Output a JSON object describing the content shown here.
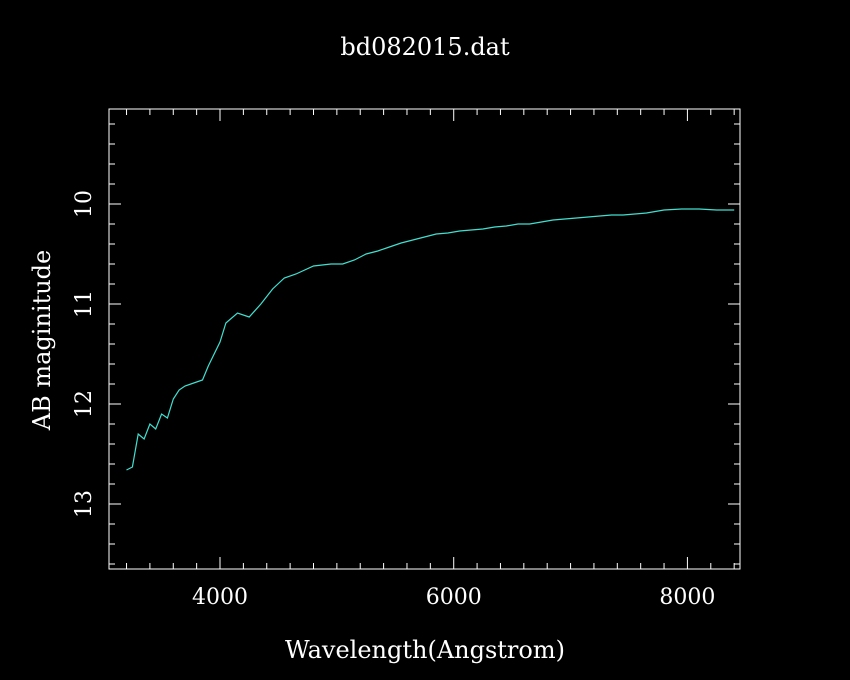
{
  "chart_data": {
    "type": "line",
    "title": "bd082015.dat",
    "xlabel": "Wavelength(Angstrom)",
    "ylabel": "AB maginitude",
    "xlim": [
      3050,
      8450
    ],
    "ylim": [
      13.65,
      9.05
    ],
    "y_inverted": true,
    "grid": false,
    "x_ticks": [
      {
        "value": 4000,
        "label": "4000"
      },
      {
        "value": 6000,
        "label": "6000"
      },
      {
        "value": 8000,
        "label": "8000"
      }
    ],
    "y_ticks": [
      {
        "value": 10,
        "label": "10"
      },
      {
        "value": 11,
        "label": "11"
      },
      {
        "value": 12,
        "label": "12"
      },
      {
        "value": 13,
        "label": "13"
      }
    ],
    "x_minor_step": 200,
    "y_minor_step": 0.2,
    "series": [
      {
        "color": "#40e0d0",
        "x": [
          3200,
          3250,
          3300,
          3350,
          3400,
          3450,
          3500,
          3550,
          3600,
          3650,
          3700,
          3800,
          3850,
          3900,
          4000,
          4050,
          4150,
          4250,
          4350,
          4450,
          4550,
          4650,
          4800,
          4950,
          5050,
          5150,
          5250,
          5350,
          5450,
          5550,
          5650,
          5750,
          5850,
          5950,
          6050,
          6150,
          6250,
          6350,
          6450,
          6550,
          6650,
          6750,
          6850,
          6950,
          7050,
          7150,
          7250,
          7350,
          7450,
          7550,
          7650,
          7800,
          7950,
          8100,
          8250,
          8400
        ],
        "y": [
          12.66,
          12.63,
          12.3,
          12.35,
          12.2,
          12.25,
          12.1,
          12.14,
          11.95,
          11.86,
          11.82,
          11.78,
          11.76,
          11.62,
          11.38,
          11.19,
          11.09,
          11.13,
          11.0,
          10.85,
          10.74,
          10.7,
          10.62,
          10.6,
          10.6,
          10.56,
          10.5,
          10.47,
          10.43,
          10.39,
          10.36,
          10.33,
          10.3,
          10.29,
          10.27,
          10.26,
          10.25,
          10.23,
          10.22,
          10.2,
          10.2,
          10.18,
          10.16,
          10.15,
          10.14,
          10.13,
          10.12,
          10.11,
          10.11,
          10.1,
          10.09,
          10.06,
          10.05,
          10.05,
          10.06,
          10.06
        ]
      }
    ]
  }
}
